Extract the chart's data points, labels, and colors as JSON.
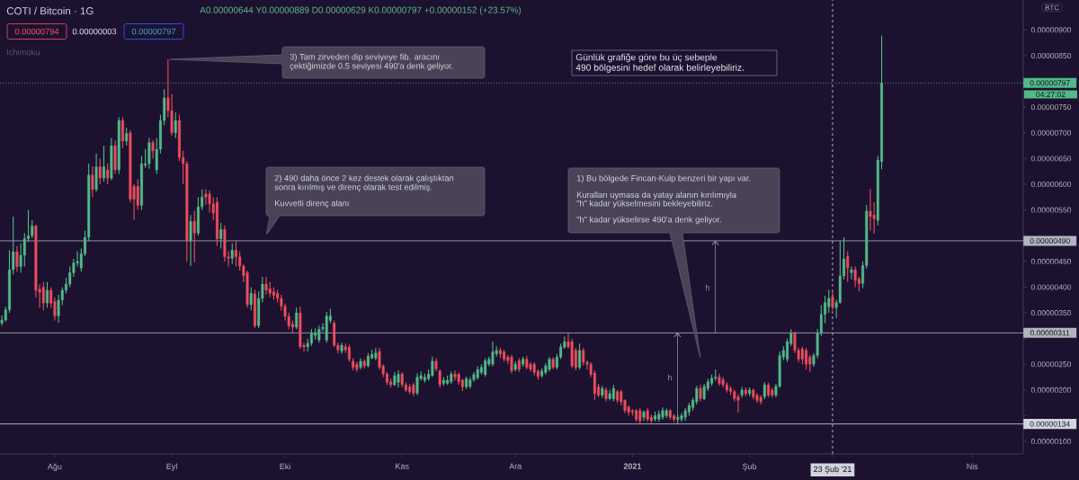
{
  "chart_data": {
    "type": "candlestick",
    "title": "COTI / Bitcoin · 1G",
    "subtitle": "A0.00000644 Y0.00000889 D0.00000629 K0.00000797 +0.00000152 (+23.57%)",
    "categories": [
      null,
      null,
      null,
      null,
      null,
      null,
      null,
      null,
      null,
      null,
      null,
      null,
      null,
      null,
      "Ağu",
      null,
      null,
      null,
      null,
      null,
      null,
      null,
      null,
      null,
      null,
      null,
      null,
      null,
      null,
      null,
      null,
      null,
      null,
      null,
      null,
      null,
      null,
      null,
      null,
      null,
      null,
      null,
      null,
      null,
      null,
      "Eyl",
      null,
      null,
      null,
      null,
      null,
      null,
      null,
      null,
      null,
      null,
      null,
      null,
      null,
      null,
      null,
      null,
      null,
      null,
      null,
      null,
      null,
      null,
      null,
      null,
      null,
      null,
      null,
      null,
      null,
      "Eki",
      null,
      null,
      null,
      null,
      null,
      null,
      null,
      null,
      null,
      null,
      null,
      null,
      null,
      null,
      null,
      null,
      null,
      null,
      null,
      null,
      null,
      null,
      null,
      null,
      null,
      null,
      null,
      null,
      null,
      null,
      "Kas",
      null,
      null,
      null,
      null,
      null,
      null,
      null,
      null,
      null,
      null,
      null,
      null,
      null,
      null,
      null,
      null,
      null,
      null,
      null,
      null,
      null,
      null,
      null,
      null,
      null,
      null,
      null,
      null,
      null,
      "Ara",
      null,
      null,
      null,
      null,
      null,
      null,
      null,
      null,
      null,
      null,
      null,
      null,
      null,
      null,
      null,
      null,
      null,
      null,
      null,
      null,
      null,
      null,
      null,
      null,
      null,
      null,
      null,
      null,
      null,
      null,
      "2021",
      null,
      null,
      null,
      null,
      null,
      null,
      null,
      null,
      null,
      null,
      null,
      null,
      null,
      null,
      null,
      null,
      null,
      null,
      null,
      null,
      null,
      null,
      null,
      null,
      null,
      null,
      null,
      null,
      null,
      null,
      "Şub",
      null,
      null,
      null,
      null,
      null,
      null,
      null,
      null,
      null,
      null,
      null,
      null,
      null,
      null,
      null,
      null,
      null,
      null,
      null,
      null,
      null,
      "23 Şub '21",
      null,
      null,
      null,
      null,
      null,
      null,
      null,
      null,
      null,
      null,
      null,
      null,
      null,
      null,
      null,
      null,
      null,
      null,
      null,
      null,
      null,
      null,
      null,
      null,
      null,
      null,
      null,
      null,
      null,
      null,
      null,
      null,
      null,
      null,
      null,
      null,
      "Nis",
      null,
      null,
      null,
      null,
      null,
      null,
      null,
      null,
      null,
      null,
      null,
      null,
      null
    ],
    "ohlc": [
      [
        3.3e-06,
        3.45e-06,
        3.25e-06,
        3.36e-06
      ],
      [
        3.36e-06,
        3.62e-06,
        3.33e-06,
        3.56e-06
      ],
      [
        3.56e-06,
        4.72e-06,
        3.5e-06,
        4.34e-06
      ],
      [
        4.34e-06,
        5.37e-06,
        4.25e-06,
        4.69e-06
      ],
      [
        4.69e-06,
        4.8e-06,
        4.3e-06,
        4.4e-06
      ],
      [
        4.4e-06,
        4.85e-06,
        4.28e-06,
        4.62e-06
      ],
      [
        4.62e-06,
        5.05e-06,
        4.4e-06,
        4.94e-06
      ],
      [
        4.94e-06,
        5.5e-06,
        4.88e-06,
        5e-06
      ],
      [
        5e-06,
        5.3e-06,
        4.95e-06,
        5.19e-06
      ],
      [
        5.19e-06,
        5.22e-06,
        3.8e-06,
        3.94e-06
      ],
      [
        3.96e-06,
        4.05e-06,
        3.6e-06,
        3.9e-06
      ],
      [
        4e-06,
        4.1e-06,
        3.55e-06,
        3.69e-06
      ],
      [
        3.69e-06,
        4.1e-06,
        3.6e-06,
        3.94e-06
      ],
      [
        3.94e-06,
        4e-06,
        3.6e-06,
        3.69e-06
      ],
      [
        3.72e-06,
        3.8e-06,
        3.35e-06,
        3.44e-06
      ],
      [
        3.44e-06,
        3.85e-06,
        3.31e-06,
        3.75e-06
      ],
      [
        3.75e-06,
        4e-06,
        3.65e-06,
        3.94e-06
      ],
      [
        3.94e-06,
        4.18e-06,
        3.88e-06,
        4.06e-06
      ],
      [
        4.06e-06,
        4.4e-06,
        4e-06,
        4.28e-06
      ],
      [
        4.28e-06,
        4.55e-06,
        4.2e-06,
        4.47e-06
      ],
      [
        4.47e-06,
        4.7e-06,
        4.4e-06,
        4.5e-06
      ],
      [
        4.37e-06,
        4.75e-06,
        4.3e-06,
        4.65e-06
      ],
      [
        4.65e-06,
        5.1e-06,
        4.6e-06,
        4.97e-06
      ],
      [
        4.97e-06,
        6.4e-06,
        4.9e-06,
        6.18e-06
      ],
      [
        6.18e-06,
        6.35e-06,
        5.75e-06,
        5.9e-06
      ],
      [
        5.9e-06,
        6.6e-06,
        5.85e-06,
        6.34e-06
      ],
      [
        6.34e-06,
        6.5e-06,
        6e-06,
        6.12e-06
      ],
      [
        6.12e-06,
        6.75e-06,
        6.05e-06,
        6.34e-06
      ],
      [
        6.28e-06,
        6.4e-06,
        6e-06,
        6.12e-06
      ],
      [
        6.12e-06,
        6.9e-06,
        6.08e-06,
        6.75e-06
      ],
      [
        6.75e-06,
        6.85e-06,
        6.2e-06,
        6.28e-06
      ],
      [
        6.28e-06,
        7.3e-06,
        6.2e-06,
        7.24e-06
      ],
      [
        7.24e-06,
        7.3e-06,
        6.7e-06,
        6.84e-06
      ],
      [
        6.84e-06,
        7.1e-06,
        6.75e-06,
        6.99e-06
      ],
      [
        7e-06,
        7.05e-06,
        5.65e-06,
        5.71e-06
      ],
      [
        5.96e-06,
        6e-06,
        5.31e-06,
        5.71e-06
      ],
      [
        5.96e-06,
        6.1e-06,
        5.5e-06,
        5.59e-06
      ],
      [
        5.59e-06,
        6.55e-06,
        5.5e-06,
        6.4e-06
      ],
      [
        6.37e-06,
        6.68e-06,
        6.32e-06,
        6.4e-06
      ],
      [
        6.4e-06,
        6.9e-06,
        6.3e-06,
        6.81e-06
      ],
      [
        6.81e-06,
        6.86e-06,
        6.5e-06,
        6.65e-06
      ],
      [
        6.28e-06,
        6.9e-06,
        6.2e-06,
        6.68e-06
      ],
      [
        6.68e-06,
        7.35e-06,
        6.6e-06,
        7.24e-06
      ],
      [
        7.24e-06,
        7.85e-06,
        7.15e-06,
        7.68e-06
      ],
      [
        7.68e-06,
        8.43e-06,
        7.3e-06,
        7.43e-06
      ],
      [
        7.43e-06,
        7.75e-06,
        6.95e-06,
        7e-06
      ],
      [
        7e-06,
        7.4e-06,
        6.9e-06,
        7.24e-06
      ],
      [
        7.24e-06,
        7.35e-06,
        6.45e-06,
        6.52e-06
      ],
      [
        6.52e-06,
        6.65e-06,
        6e-06,
        6.4e-06
      ],
      [
        6.4e-06,
        6.45e-06,
        4.5e-06,
        4.9e-06
      ],
      [
        4.9e-06,
        5.4e-06,
        4.41e-06,
        5.28e-06
      ],
      [
        5.28e-06,
        5.48e-06,
        4.48e-06,
        5.05e-06
      ],
      [
        5.05e-06,
        5.75e-06,
        5e-06,
        5.56e-06
      ],
      [
        5.56e-06,
        5.9e-06,
        5.5e-06,
        5.75e-06
      ],
      [
        5.81e-06,
        5.9e-06,
        5.6e-06,
        5.75e-06
      ],
      [
        5.81e-06,
        5.88e-06,
        5.45e-06,
        5.62e-06
      ],
      [
        5.62e-06,
        5.75e-06,
        5.3e-06,
        5.44e-06
      ],
      [
        5.65e-06,
        5.75e-06,
        4.8e-06,
        4.94e-06
      ],
      [
        4.94e-06,
        5.25e-06,
        4.75e-06,
        5.12e-06
      ],
      [
        5.12e-06,
        5.2e-06,
        4.5e-06,
        4.59e-06
      ],
      [
        4.59e-06,
        4.7e-06,
        4.4e-06,
        4.56e-06
      ],
      [
        4.56e-06,
        4.85e-06,
        4.45e-06,
        4.72e-06
      ],
      [
        4.72e-06,
        4.9e-06,
        4.4e-06,
        4.59e-06
      ],
      [
        4.59e-06,
        4.7e-06,
        4.32e-06,
        4.41e-06
      ],
      [
        4.41e-06,
        4.45e-06,
        4.1e-06,
        4.22e-06
      ],
      [
        4.28e-06,
        4.32e-06,
        3.6e-06,
        3.66e-06
      ],
      [
        3.66e-06,
        4e-06,
        3.55e-06,
        3.88e-06
      ],
      [
        3.87e-06,
        3.95e-06,
        3.2e-06,
        3.25e-06
      ],
      [
        3.25e-06,
        3.92e-06,
        3.2e-06,
        3.78e-06
      ],
      [
        3.78e-06,
        4.2e-06,
        3.7e-06,
        4.06e-06
      ],
      [
        4.06e-06,
        4.2e-06,
        3.85e-06,
        3.94e-06
      ],
      [
        3.97e-06,
        4.1e-06,
        3.8e-06,
        3.88e-06
      ],
      [
        3.91e-06,
        4e-06,
        3.75e-06,
        3.84e-06
      ],
      [
        3.88e-06,
        3.95e-06,
        3.7e-06,
        3.78e-06
      ],
      [
        3.78e-06,
        3.85e-06,
        3.55e-06,
        3.63e-06
      ],
      [
        3.63e-06,
        3.68e-06,
        3.35e-06,
        3.43e-06
      ],
      [
        3.43e-06,
        3.5e-06,
        3.18e-06,
        3.25e-06
      ],
      [
        3.28e-06,
        3.35e-06,
        3.12e-06,
        3.22e-06
      ],
      [
        3.22e-06,
        3.6e-06,
        3.18e-06,
        3.5e-06
      ],
      [
        3.5e-06,
        3.62e-06,
        2.8e-06,
        2.84e-06
      ],
      [
        2.87e-06,
        2.92e-06,
        2.75e-06,
        2.84e-06
      ],
      [
        2.84e-06,
        3e-06,
        2.75e-06,
        2.91e-06
      ],
      [
        2.91e-06,
        3.18e-06,
        2.86e-06,
        3.1e-06
      ],
      [
        3.06e-06,
        3.2e-06,
        2.98e-06,
        3.1e-06
      ],
      [
        2.97e-06,
        3.25e-06,
        2.92e-06,
        3.18e-06
      ],
      [
        3.19e-06,
        3.3e-06,
        3.14e-06,
        3.22e-06
      ],
      [
        2.97e-06,
        3.52e-06,
        2.92e-06,
        3.44e-06
      ],
      [
        3.35e-06,
        3.58e-06,
        3.3e-06,
        3.44e-06
      ],
      [
        3.3e-06,
        3.35e-06,
        2.83e-06,
        2.87e-06
      ],
      [
        2.87e-06,
        2.92e-06,
        2.72e-06,
        2.78e-06
      ],
      [
        2.75e-06,
        2.92e-06,
        2.7e-06,
        2.87e-06
      ],
      [
        2.84e-06,
        2.9e-06,
        2.72e-06,
        2.78e-06
      ],
      [
        2.83e-06,
        2.88e-06,
        2.55e-06,
        2.6e-06
      ],
      [
        2.56e-06,
        2.62e-06,
        2.38e-06,
        2.44e-06
      ],
      [
        2.5e-06,
        2.55e-06,
        2.35e-06,
        2.41e-06
      ],
      [
        2.44e-06,
        2.62e-06,
        2.4e-06,
        2.56e-06
      ],
      [
        2.56e-06,
        2.6e-06,
        2.42e-06,
        2.47e-06
      ],
      [
        2.47e-06,
        2.72e-06,
        2.44e-06,
        2.66e-06
      ],
      [
        2.62e-06,
        2.78e-06,
        2.6e-06,
        2.69e-06
      ],
      [
        2.62e-06,
        2.82e-06,
        2.58e-06,
        2.72e-06
      ],
      [
        2.75e-06,
        2.82e-06,
        2.4e-06,
        2.44e-06
      ],
      [
        2.47e-06,
        2.5e-06,
        2.25e-06,
        2.31e-06
      ],
      [
        2.31e-06,
        2.35e-06,
        2.1e-06,
        2.15e-06
      ],
      [
        2.16e-06,
        2.22e-06,
        2.05e-06,
        2.1e-06
      ],
      [
        2.1e-06,
        2.35e-06,
        2.08e-06,
        2.28e-06
      ],
      [
        2.15e-06,
        2.38e-06,
        2.05e-06,
        2.31e-06
      ],
      [
        2.31e-06,
        2.35e-06,
        2.05e-06,
        2.1e-06
      ],
      [
        2.1e-06,
        2.15e-06,
        1.96e-06,
        2e-06
      ],
      [
        2.06e-06,
        2.12e-06,
        1.92e-06,
        1.97e-06
      ],
      [
        2.1e-06,
        2.14e-06,
        1.88e-06,
        1.94e-06
      ],
      [
        1.94e-06,
        2.32e-06,
        1.9e-06,
        2.25e-06
      ],
      [
        2.22e-06,
        2.36e-06,
        2.18e-06,
        2.28e-06
      ],
      [
        2.19e-06,
        2.32e-06,
        2.14e-06,
        2.25e-06
      ],
      [
        2.22e-06,
        2.4e-06,
        2.18e-06,
        2.31e-06
      ],
      [
        2.28e-06,
        2.65e-06,
        2.25e-06,
        2.56e-06
      ],
      [
        2.56e-06,
        2.62e-06,
        2.36e-06,
        2.41e-06
      ],
      [
        2.37e-06,
        2.4e-06,
        2.05e-06,
        2.1e-06
      ],
      [
        2.13e-06,
        2.25e-06,
        2.08e-06,
        2.19e-06
      ],
      [
        2.13e-06,
        2.28e-06,
        2.1e-06,
        2.19e-06
      ],
      [
        2.16e-06,
        2.36e-06,
        2.12e-06,
        2.31e-06
      ],
      [
        2.31e-06,
        2.38e-06,
        2.18e-06,
        2.25e-06
      ],
      [
        2.31e-06,
        2.34e-06,
        2.1e-06,
        2.16e-06
      ],
      [
        2.19e-06,
        2.22e-06,
        1.98e-06,
        2.06e-06
      ],
      [
        2.06e-06,
        2.26e-06,
        2.02e-06,
        2.22e-06
      ],
      [
        2.07e-06,
        2.25e-06,
        2.03e-06,
        2.2e-06
      ],
      [
        2.2e-06,
        2.35e-06,
        2.16e-06,
        2.3e-06
      ],
      [
        2.24e-06,
        2.46e-06,
        2.2e-06,
        2.4e-06
      ],
      [
        2.34e-06,
        2.5e-06,
        2.3e-06,
        2.44e-06
      ],
      [
        2.3e-06,
        2.62e-06,
        2.26e-06,
        2.57e-06
      ],
      [
        2.5e-06,
        2.65e-06,
        2.46e-06,
        2.6e-06
      ],
      [
        2.5e-06,
        2.94e-06,
        2.46e-06,
        2.74e-06
      ],
      [
        2.7e-06,
        2.85e-06,
        2.65e-06,
        2.77e-06
      ],
      [
        2.77e-06,
        2.82e-06,
        2.62e-06,
        2.7e-06
      ],
      [
        2.74e-06,
        2.78e-06,
        2.55e-06,
        2.6e-06
      ],
      [
        2.64e-06,
        2.68e-06,
        2.5e-06,
        2.57e-06
      ],
      [
        2.64e-06,
        2.68e-06,
        2.32e-06,
        2.37e-06
      ],
      [
        2.4e-06,
        2.56e-06,
        2.36e-06,
        2.5e-06
      ],
      [
        2.57e-06,
        2.62e-06,
        2.35e-06,
        2.4e-06
      ],
      [
        2.5e-06,
        2.65e-06,
        2.45e-06,
        2.6e-06
      ],
      [
        2.6e-06,
        2.66e-06,
        2.4e-06,
        2.44e-06
      ],
      [
        2.5e-06,
        2.54e-06,
        2.36e-06,
        2.4e-06
      ],
      [
        2.5e-06,
        2.54e-06,
        2.28e-06,
        2.34e-06
      ],
      [
        2.37e-06,
        2.4e-06,
        2.2e-06,
        2.26e-06
      ],
      [
        2.28e-06,
        2.42e-06,
        2.24e-06,
        2.37e-06
      ],
      [
        2.34e-06,
        2.52e-06,
        2.3e-06,
        2.47e-06
      ],
      [
        2.4e-06,
        2.64e-06,
        2.36e-06,
        2.6e-06
      ],
      [
        2.6e-06,
        2.64e-06,
        2.4e-06,
        2.44e-06
      ],
      [
        2.44e-06,
        2.7e-06,
        2.4e-06,
        2.64e-06
      ],
      [
        2.64e-06,
        2.9e-06,
        2.6e-06,
        2.84e-06
      ],
      [
        2.83e-06,
        3.04e-06,
        2.8e-06,
        2.94e-06
      ],
      [
        2.94e-06,
        3.11e-06,
        2.8e-06,
        2.84e-06
      ],
      [
        2.94e-06,
        3e-06,
        2.42e-06,
        2.47e-06
      ],
      [
        2.77e-06,
        2.82e-06,
        2.38e-06,
        2.44e-06
      ],
      [
        2.44e-06,
        2.9e-06,
        2.4e-06,
        2.77e-06
      ],
      [
        2.77e-06,
        2.82e-06,
        2.48e-06,
        2.54e-06
      ],
      [
        2.54e-06,
        2.58e-06,
        2.4e-06,
        2.5e-06
      ],
      [
        2.5e-06,
        2.54e-06,
        2.25e-06,
        2.3e-06
      ],
      [
        2.33e-06,
        2.38e-06,
        1.8e-06,
        1.93e-06
      ],
      [
        2.06e-06,
        2.12e-06,
        1.86e-06,
        1.9e-06
      ],
      [
        1.9e-06,
        2.08e-06,
        1.85e-06,
        2.03e-06
      ],
      [
        2e-06,
        2.05e-06,
        1.78e-06,
        1.83e-06
      ],
      [
        1.83e-06,
        2e-06,
        1.8e-06,
        1.93e-06
      ],
      [
        1.83e-06,
        2.1e-06,
        1.78e-06,
        2.03e-06
      ],
      [
        1.97e-06,
        2e-06,
        1.75e-06,
        1.8e-06
      ],
      [
        1.97e-06,
        2e-06,
        1.7e-06,
        1.77e-06
      ],
      [
        1.8e-06,
        1.82e-06,
        1.55e-06,
        1.6e-06
      ],
      [
        1.67e-06,
        1.7e-06,
        1.5e-06,
        1.57e-06
      ],
      [
        1.6e-06,
        1.63e-06,
        1.5e-06,
        1.57e-06
      ],
      [
        1.6e-06,
        1.63e-06,
        1.38e-06,
        1.43e-06
      ],
      [
        1.6e-06,
        1.65e-06,
        1.34e-06,
        1.4e-06
      ],
      [
        1.47e-06,
        1.6e-06,
        1.4e-06,
        1.57e-06
      ],
      [
        1.6e-06,
        1.65e-06,
        1.38e-06,
        1.43e-06
      ],
      [
        1.47e-06,
        1.52e-06,
        1.36e-06,
        1.4e-06
      ],
      [
        1.43e-06,
        1.58e-06,
        1.39e-06,
        1.5e-06
      ],
      [
        1.43e-06,
        1.6e-06,
        1.38e-06,
        1.53e-06
      ],
      [
        1.47e-06,
        1.66e-06,
        1.42e-06,
        1.6e-06
      ],
      [
        1.5e-06,
        1.64e-06,
        1.45e-06,
        1.6e-06
      ],
      [
        1.6e-06,
        1.63e-06,
        1.42e-06,
        1.47e-06
      ],
      [
        1.5e-06,
        1.53e-06,
        1.38e-06,
        1.43e-06
      ],
      [
        1.43e-06,
        1.52e-06,
        1.37e-06,
        1.47e-06
      ],
      [
        1.43e-06,
        1.55e-06,
        1.38e-06,
        1.5e-06
      ],
      [
        1.47e-06,
        1.65e-06,
        1.4e-06,
        1.6e-06
      ],
      [
        1.57e-06,
        1.75e-06,
        1.5e-06,
        1.7e-06
      ],
      [
        1.66e-06,
        1.85e-06,
        1.6e-06,
        1.8e-06
      ],
      [
        1.77e-06,
        2.08e-06,
        1.72e-06,
        2.03e-06
      ],
      [
        2.03e-06,
        2.1e-06,
        1.78e-06,
        1.83e-06
      ],
      [
        1.83e-06,
        2.12e-06,
        1.8e-06,
        2.07e-06
      ],
      [
        2.03e-06,
        2.22e-06,
        1.98e-06,
        2.16e-06
      ],
      [
        2.13e-06,
        2.3e-06,
        2.08e-06,
        2.23e-06
      ],
      [
        2.23e-06,
        2.4e-06,
        2.18e-06,
        2.25e-06
      ],
      [
        2.25e-06,
        2.32e-06,
        2.08e-06,
        2.13e-06
      ],
      [
        2.2e-06,
        2.25e-06,
        2.05e-06,
        2.1e-06
      ],
      [
        2.1e-06,
        2.15e-06,
        1.95e-06,
        2e-06
      ],
      [
        2.03e-06,
        2.07e-06,
        1.9e-06,
        1.97e-06
      ],
      [
        1.97e-06,
        2e-06,
        1.78e-06,
        1.83e-06
      ],
      [
        1.87e-06,
        1.92e-06,
        1.56e-06,
        1.8e-06
      ],
      [
        1.9e-06,
        2.06e-06,
        1.85e-06,
        2e-06
      ],
      [
        2e-06,
        2.05e-06,
        1.88e-06,
        1.93e-06
      ],
      [
        1.93e-06,
        2.05e-06,
        1.88e-06,
        2e-06
      ],
      [
        2e-06,
        2.03e-06,
        1.82e-06,
        1.87e-06
      ],
      [
        1.9e-06,
        1.94e-06,
        1.75e-06,
        1.8e-06
      ],
      [
        1.86e-06,
        1.9e-06,
        1.72e-06,
        1.77e-06
      ],
      [
        1.87e-06,
        2.15e-06,
        1.82e-06,
        2.1e-06
      ],
      [
        2.1e-06,
        2.14e-06,
        1.86e-06,
        1.9e-06
      ],
      [
        2e-06,
        2.04e-06,
        1.85e-06,
        1.9e-06
      ],
      [
        1.9e-06,
        2.12e-06,
        1.86e-06,
        2.07e-06
      ],
      [
        2.07e-06,
        2.75e-06,
        2.04e-06,
        2.67e-06
      ],
      [
        2.64e-06,
        2.85e-06,
        2.58e-06,
        2.77e-06
      ],
      [
        2.6e-06,
        3e-06,
        2.55e-06,
        2.94e-06
      ],
      [
        2.9e-06,
        3.18e-06,
        2.85e-06,
        3.1e-06
      ],
      [
        3.1e-06,
        3.14e-06,
        2.72e-06,
        2.77e-06
      ],
      [
        2.77e-06,
        2.82e-06,
        2.54e-06,
        2.6e-06
      ],
      [
        2.8e-06,
        2.84e-06,
        2.5e-06,
        2.6e-06
      ],
      [
        2.77e-06,
        2.82e-06,
        2.4e-06,
        2.5e-06
      ],
      [
        2.64e-06,
        2.68e-06,
        2.35e-06,
        2.5e-06
      ],
      [
        2.5e-06,
        2.72e-06,
        2.45e-06,
        2.67e-06
      ],
      [
        2.67e-06,
        3.18e-06,
        2.62e-06,
        3.1e-06
      ],
      [
        3.1e-06,
        3.65e-06,
        3.05e-06,
        3.47e-06
      ],
      [
        3.47e-06,
        3.83e-06,
        3.3e-06,
        3.7e-06
      ],
      [
        3.62e-06,
        3.95e-06,
        3.5e-06,
        3.78e-06
      ],
      [
        3.81e-06,
        3.92e-06,
        3.55e-06,
        3.61e-06
      ],
      [
        3.6e-06,
        3.76e-06,
        3.4e-06,
        3.7e-06
      ],
      [
        3.7e-06,
        4.9e-06,
        3.68e-06,
        4.22e-06
      ],
      [
        4.22e-06,
        4.97e-06,
        4.15e-06,
        4.55e-06
      ],
      [
        4.6e-06,
        4.7e-06,
        4.1e-06,
        4.37e-06
      ],
      [
        4.28e-06,
        4.4e-06,
        4.15e-06,
        4.34e-06
      ],
      [
        4.34e-06,
        4.4e-06,
        4e-06,
        4.13e-06
      ],
      [
        4.16e-06,
        4.2e-06,
        3.92e-06,
        4.07e-06
      ],
      [
        4.07e-06,
        4.5e-06,
        3.98e-06,
        4.42e-06
      ],
      [
        4.42e-06,
        5.6e-06,
        4.36e-06,
        5.48e-06
      ],
      [
        5.48e-06,
        5.91e-06,
        5.1e-06,
        5.37e-06
      ],
      [
        5.4e-06,
        5.65e-06,
        5.04e-06,
        5.33e-06
      ],
      [
        5.3e-06,
        6.55e-06,
        5.2e-06,
        6.47e-06
      ],
      [
        6.44e-06,
        8.89e-06,
        6.29e-06,
        7.97e-06
      ],
      null,
      null,
      null,
      null,
      null,
      null,
      null,
      null,
      null,
      null,
      null,
      null,
      null,
      null,
      null,
      null,
      null,
      null,
      null,
      null,
      null,
      null,
      null,
      null,
      null,
      null,
      null,
      null,
      null,
      null,
      null,
      null,
      null,
      null,
      null,
      null,
      null
    ],
    "colors": [
      "#53b987",
      "#53b987",
      "#53b987",
      "#53b987",
      "#eb4d5c",
      "#53b987",
      "#53b987",
      "#53b987",
      "#53b987",
      "#eb4d5c",
      "#eb4d5c",
      "#eb4d5c",
      "#53b987",
      "#eb4d5c",
      "#eb4d5c",
      "#53b987",
      "#53b987",
      "#53b987",
      "#53b987",
      "#53b987",
      "#53b987",
      "#53b987",
      "#53b987",
      "#53b987",
      "#eb4d5c",
      "#53b987",
      "#eb4d5c",
      "#53b987",
      "#eb4d5c",
      "#53b987",
      "#eb4d5c",
      "#53b987",
      "#eb4d5c",
      "#53b987",
      "#eb4d5c",
      "#eb4d5c",
      "#eb4d5c",
      "#53b987",
      "#53b987",
      "#53b987",
      "#eb4d5c",
      "#53b987",
      "#53b987",
      "#53b987",
      "#eb4d5c",
      "#eb4d5c",
      "#53b987",
      "#eb4d5c",
      "#eb4d5c",
      "#eb4d5c",
      "#53b987",
      "#eb4d5c",
      "#53b987",
      "#53b987",
      "#eb4d5c",
      "#eb4d5c",
      "#eb4d5c",
      "#eb4d5c",
      "#53b987",
      "#eb4d5c",
      "#eb4d5c",
      "#53b987",
      "#eb4d5c",
      "#eb4d5c",
      "#eb4d5c",
      "#eb4d5c",
      "#53b987",
      "#eb4d5c",
      "#53b987",
      "#53b987",
      "#eb4d5c",
      "#eb4d5c",
      "#eb4d5c",
      "#eb4d5c",
      "#eb4d5c",
      "#eb4d5c",
      "#eb4d5c",
      "#eb4d5c",
      "#53b987",
      "#eb4d5c",
      "#eb4d5c",
      "#53b987",
      "#53b987",
      "#53b987",
      "#53b987",
      "#53b987",
      "#53b987",
      "#53b987",
      "#eb4d5c",
      "#eb4d5c",
      "#53b987",
      "#eb4d5c",
      "#eb4d5c",
      "#eb4d5c",
      "#eb4d5c",
      "#53b987",
      "#eb4d5c",
      "#53b987",
      "#53b987",
      "#53b987",
      "#eb4d5c",
      "#eb4d5c",
      "#eb4d5c",
      "#eb4d5c",
      "#53b987",
      "#53b987",
      "#eb4d5c",
      "#eb4d5c",
      "#eb4d5c",
      "#eb4d5c",
      "#53b987",
      "#53b987",
      "#53b987",
      "#53b987",
      "#53b987",
      "#eb4d5c",
      "#eb4d5c",
      "#53b987",
      "#53b987",
      "#53b987",
      "#eb4d5c",
      "#eb4d5c",
      "#eb4d5c",
      "#53b987",
      "#53b987",
      "#53b987",
      "#53b987",
      "#53b987",
      "#53b987",
      "#53b987",
      "#53b987",
      "#53b987",
      "#eb4d5c",
      "#eb4d5c",
      "#eb4d5c",
      "#eb4d5c",
      "#53b987",
      "#eb4d5c",
      "#53b987",
      "#eb4d5c",
      "#eb4d5c",
      "#eb4d5c",
      "#eb4d5c",
      "#53b987",
      "#53b987",
      "#53b987",
      "#eb4d5c",
      "#53b987",
      "#53b987",
      "#53b987",
      "#eb4d5c",
      "#eb4d5c",
      "#eb4d5c",
      "#53b987",
      "#eb4d5c",
      "#eb4d5c",
      "#eb4d5c",
      "#eb4d5c",
      "#eb4d5c",
      "#53b987",
      "#eb4d5c",
      "#53b987",
      "#53b987",
      "#eb4d5c",
      "#eb4d5c",
      "#eb4d5c",
      "#eb4d5c",
      "#eb4d5c",
      "#eb4d5c",
      "#eb4d5c",
      "#53b987",
      "#eb4d5c",
      "#eb4d5c",
      "#53b987",
      "#53b987",
      "#53b987",
      "#53b987",
      "#eb4d5c",
      "#eb4d5c",
      "#53b987",
      "#53b987",
      "#53b987",
      "#53b987",
      "#53b987",
      "#53b987",
      "#eb4d5c",
      "#53b987",
      "#53b987",
      "#53b987",
      "#53b987",
      "#eb4d5c",
      "#eb4d5c",
      "#eb4d5c",
      "#eb4d5c",
      "#eb4d5c",
      "#eb4d5c",
      "#53b987",
      "#eb4d5c",
      "#53b987",
      "#eb4d5c",
      "#eb4d5c",
      "#eb4d5c",
      "#53b987",
      "#eb4d5c",
      "#eb4d5c",
      "#53b987",
      "#53b987",
      "#53b987",
      "#53b987",
      "#53b987",
      "#eb4d5c",
      "#eb4d5c",
      "#eb4d5c",
      "#eb4d5c",
      "#eb4d5c",
      "#53b987",
      "#53b987",
      "#53b987",
      "#53b987",
      "#53b987",
      "#eb4d5c",
      "#53b987",
      "#53b987",
      "#53b987",
      "#eb4d5c",
      "#53b987",
      "#eb4d5c",
      "#eb4d5c",
      "#53b987",
      "#53b987",
      "#eb4d5c",
      "#eb4d5c",
      "#53b987",
      "#53b987",
      null,
      null,
      null,
      null,
      null,
      null,
      null,
      null,
      null,
      null,
      null,
      null,
      null,
      null,
      null,
      null,
      null,
      null,
      null,
      null,
      null,
      null,
      null,
      null,
      null,
      null,
      null,
      null,
      null,
      null,
      null,
      null,
      null,
      null,
      null,
      null,
      null
    ],
    "ylim": [
      7.57e-07,
      9.583e-06
    ],
    "yticks": [
      {
        "value": 1e-06,
        "label": "0.00000100"
      },
      {
        "value": 1.5e-06,
        "label": null
      },
      {
        "value": 2e-06,
        "label": "0.00000200"
      },
      {
        "value": 2.5e-06,
        "label": "0.00000250"
      },
      {
        "value": 3e-06,
        "label": null
      },
      {
        "value": 3.5e-06,
        "label": "0.00000350"
      },
      {
        "value": 4e-06,
        "label": "0.00000400"
      },
      {
        "value": 4.5e-06,
        "label": "0.00000450"
      },
      {
        "value": 5e-06,
        "label": null
      },
      {
        "value": 5.5e-06,
        "label": "0.00000550"
      },
      {
        "value": 6e-06,
        "label": "0.00000600"
      },
      {
        "value": 6.5e-06,
        "label": "0.00000650"
      },
      {
        "value": 7e-06,
        "label": "0.00000700"
      },
      {
        "value": 7.5e-06,
        "label": "0.00000750"
      },
      {
        "value": 8e-06,
        "label": null
      },
      {
        "value": 8.5e-06,
        "label": "0.00000850"
      },
      {
        "value": 9e-06,
        "label": "0.00000900"
      }
    ],
    "ref_lines": [
      {
        "axis": "y",
        "value": 4.9e-06,
        "label": "0.00000490",
        "color": "#b2b5be"
      },
      {
        "axis": "y",
        "value": 3.11e-06,
        "label": "0.00000311",
        "color": "#b2b5be"
      },
      {
        "axis": "y",
        "value": 1.34e-06,
        "label": "0.00000134",
        "color": "#d1d4dc"
      },
      {
        "axis": "y",
        "value": 7.97e-06,
        "label": "0.00000797",
        "color": "#53b987",
        "line_style": "dotted"
      },
      {
        "axis": "x",
        "value": "23 Şub '21",
        "color": "#d1d4dc",
        "line_style": "dashed"
      }
    ],
    "annotations": [
      "0.00000794",
      "0.00000003",
      "0.00000797",
      "Ichimoku",
      "3) Tam zirveden dip seviyeye fib. aracını",
      "çektiğimizde 0.5 seviyesi 490'a denk geliyor.",
      "2) 490 daha önce 2 kez destek olarak çalıştıktan",
      "sonra kırılmış ve direnç olarak test edilmiş.",
      "Kuvvetli direnç alanı",
      "1) Bu bölgede Fincan-Kulp benzeri bir yapı var.",
      "Kuralları uymasa da yatay alanın kırılımıyla",
      "\"h\" kadar yükselmesini bekleyebiliriz.",
      "\"h\" kadar yükselirse 490'a denk geliyor.",
      "Günlük grafiğe göre bu üç sebeple",
      "490 bölgesini hedef olarak belirleyebiliriz.",
      "BTC",
      "04:27:02",
      "h",
      "h"
    ]
  }
}
